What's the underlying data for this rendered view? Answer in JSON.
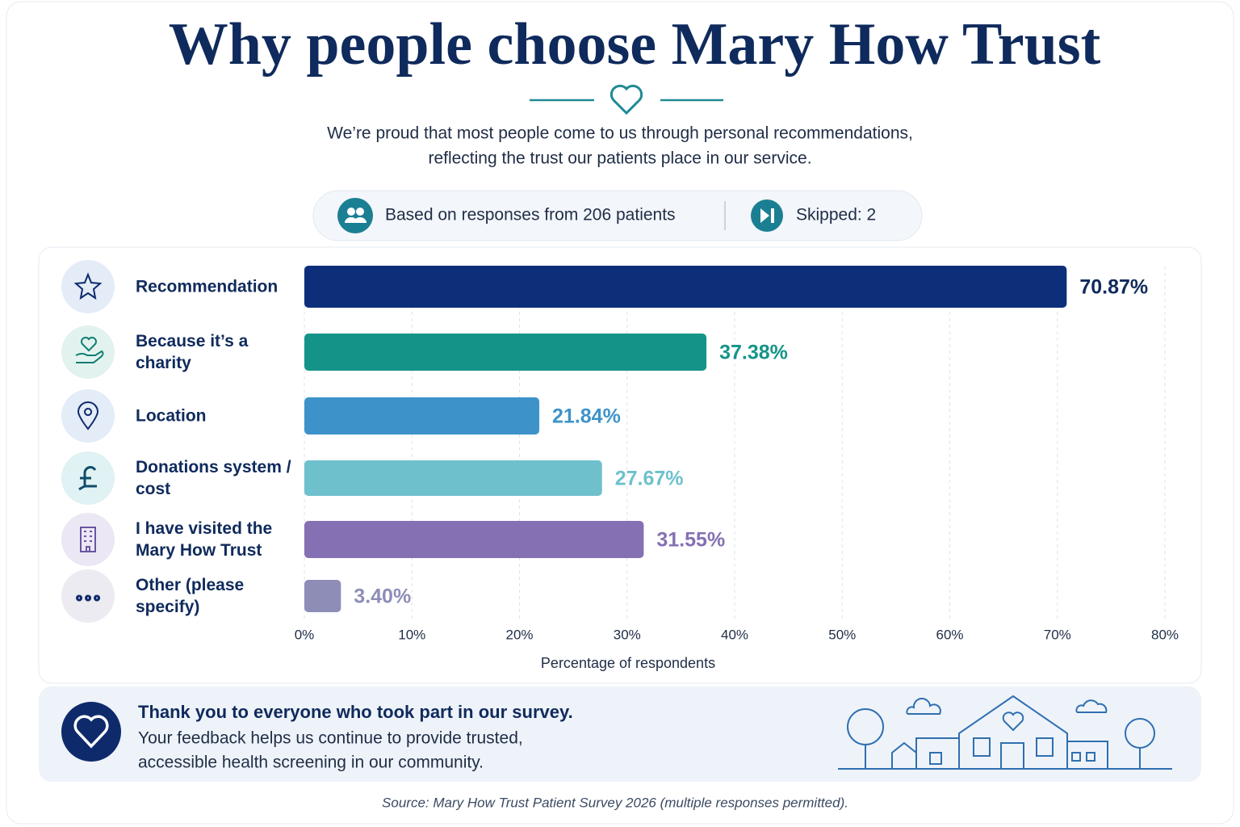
{
  "chart_data": {
    "type": "hbar",
    "title": "Why people choose Mary How Trust",
    "subtitle": [
      "We’re proud that most people come to us through personal recommendations,",
      "reflecting the trust our patients place in our service."
    ],
    "categories": [
      "Recommendation",
      "Because it’s a charity",
      "Location",
      "Donations system / cost",
      "I have visited the Mary How Trust",
      "Other (please specify)"
    ],
    "values": [
      70.87,
      37.38,
      21.84,
      27.67,
      31.55,
      3.4
    ],
    "value_labels": [
      "70.87%",
      "37.38%",
      "21.84%",
      "27.67%",
      "31.55%",
      "3.40%"
    ],
    "colors": [
      "#0d2f7a",
      "#149488",
      "#3d93c9",
      "#6ec0cc",
      "#8570b3",
      "#8d8db8"
    ],
    "xlim": [
      0,
      80
    ],
    "xticks": [
      {
        "value": 0,
        "label": "0%"
      },
      {
        "value": 10,
        "label": "10%"
      },
      {
        "value": 20,
        "label": "20%"
      },
      {
        "value": 30,
        "label": "30%"
      },
      {
        "value": 40,
        "label": "40%"
      },
      {
        "value": 50,
        "label": "50%"
      },
      {
        "value": 60,
        "label": "60%"
      },
      {
        "value": 70,
        "label": "70%"
      },
      {
        "value": 80,
        "label": "80%"
      }
    ],
    "xlabel": "Percentage of respondents",
    "grid": true
  },
  "stats": {
    "responses": "Based on responses from 206 patients",
    "skipped": "Skipped: 2"
  },
  "footer": {
    "heading": "Thank you to everyone who took part in our survey.",
    "lines": [
      "Your feedback helps us continue to provide trusted,",
      "accessible health screening in our community."
    ]
  },
  "source": "Source: Mary How Trust Patient Survey 2026 (multiple responses permitted)."
}
